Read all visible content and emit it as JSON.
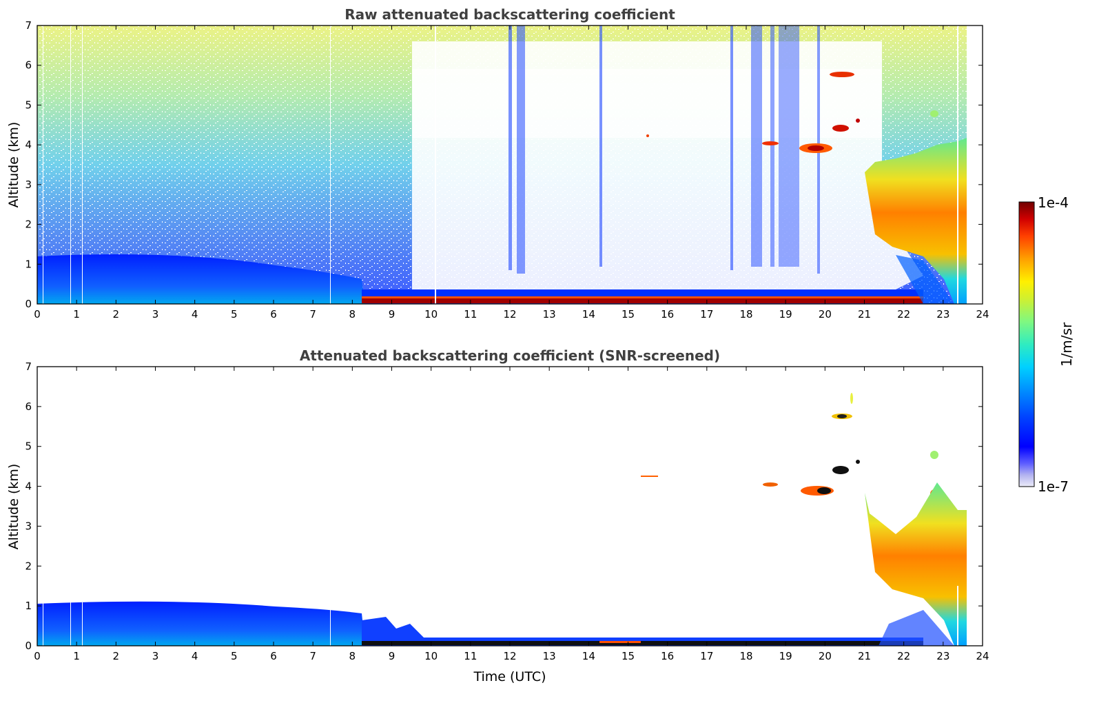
{
  "chart_data": [
    {
      "type": "heatmap",
      "title": "Raw attenuated backscattering coefficient",
      "xlabel": "",
      "ylabel": "Altitude (km)",
      "xlim": [
        0,
        24
      ],
      "ylim": [
        0,
        7
      ],
      "xticks": [
        "0",
        "1",
        "2",
        "3",
        "4",
        "5",
        "6",
        "7",
        "8",
        "9",
        "10",
        "11",
        "12",
        "13",
        "14",
        "15",
        "16",
        "17",
        "18",
        "19",
        "20",
        "21",
        "22",
        "23",
        "24"
      ],
      "yticks": [
        "0",
        "1",
        "2",
        "3",
        "4",
        "5",
        "6",
        "7"
      ],
      "data_end_hour": 23.55,
      "features": [
        {
          "name": "boundary layer (blue)",
          "x_range": [
            0,
            8.3
          ],
          "top_km": 1.0
        },
        {
          "name": "dense low layer",
          "x_range": [
            8.3,
            22.6
          ],
          "top_km": 0.15
        },
        {
          "name": "cloud",
          "x_range": [
            20.2,
            20.8
          ],
          "alt_km": 5.75
        },
        {
          "name": "cloud",
          "x_range": [
            20.3,
            20.7
          ],
          "alt_km": 4.4
        },
        {
          "name": "cloud",
          "x_range": [
            19.4,
            20.1
          ],
          "alt_km": 3.9
        },
        {
          "name": "cloud",
          "x_range": [
            18.4,
            18.8
          ],
          "alt_km": 4.05
        },
        {
          "name": "aerosol plume",
          "x_range": [
            21.3,
            23.55
          ],
          "top_km": 4.0
        }
      ]
    },
    {
      "type": "heatmap",
      "title": "Attenuated backscattering coefficient (SNR-screened)",
      "xlabel": "Time (UTC)",
      "ylabel": "Altitude (km)",
      "xlim": [
        0,
        24
      ],
      "ylim": [
        0,
        7
      ],
      "xticks": [
        "0",
        "1",
        "2",
        "3",
        "4",
        "5",
        "6",
        "7",
        "8",
        "9",
        "10",
        "11",
        "12",
        "13",
        "14",
        "15",
        "16",
        "17",
        "18",
        "19",
        "20",
        "21",
        "22",
        "23",
        "24"
      ],
      "yticks": [
        "0",
        "1",
        "2",
        "3",
        "4",
        "5",
        "6",
        "7"
      ],
      "data_end_hour": 23.55
    }
  ],
  "colorbar": {
    "label": "1/m/sr",
    "max_label": "1e-4",
    "min_label": "1e-7",
    "colors": [
      "#e8e8f8",
      "#b0b0f0",
      "#7070ff",
      "#2020ff",
      "#0000f0",
      "#0044ff",
      "#0088ff",
      "#00c4ff",
      "#20e8d0",
      "#70f890",
      "#c0f040",
      "#fff000",
      "#ffb000",
      "#ff6000",
      "#f01000",
      "#a00000",
      "#700000"
    ]
  }
}
